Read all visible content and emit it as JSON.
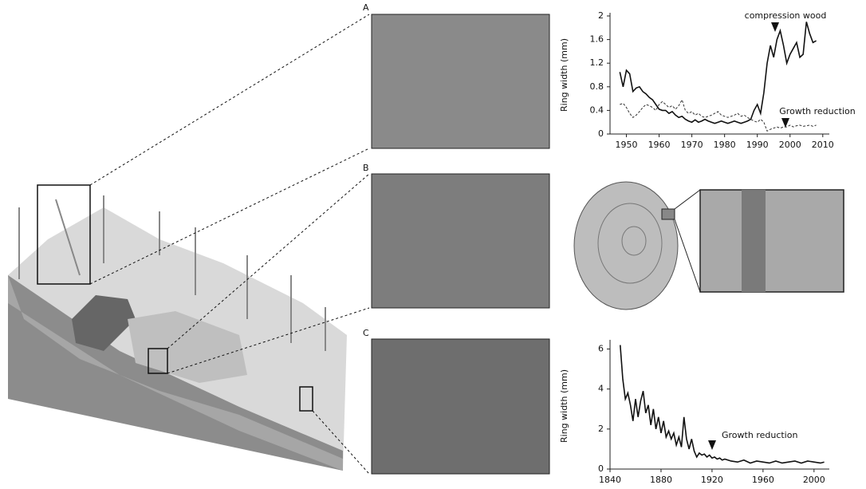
{
  "panels": [
    "A",
    "B",
    "C"
  ],
  "chart_data": [
    {
      "type": "line",
      "y_label": "Ring width (mm)",
      "x": [
        1948,
        1949,
        1950,
        1951,
        1952,
        1953,
        1954,
        1955,
        1956,
        1957,
        1958,
        1959,
        1960,
        1961,
        1962,
        1963,
        1964,
        1965,
        1966,
        1967,
        1968,
        1969,
        1970,
        1971,
        1972,
        1973,
        1974,
        1975,
        1976,
        1977,
        1978,
        1979,
        1980,
        1981,
        1982,
        1983,
        1984,
        1985,
        1986,
        1987,
        1988,
        1989,
        1990,
        1991,
        1992,
        1993,
        1994,
        1995,
        1996,
        1997,
        1998,
        1999,
        2000,
        2001,
        2002,
        2003,
        2004,
        2005,
        2006,
        2007,
        2008
      ],
      "series": [
        {
          "color": "#111111",
          "dash": "solid",
          "values": [
            1.05,
            0.8,
            1.08,
            1.02,
            0.72,
            0.78,
            0.8,
            0.72,
            0.68,
            0.62,
            0.58,
            0.5,
            0.42,
            0.4,
            0.4,
            0.35,
            0.38,
            0.32,
            0.28,
            0.3,
            0.25,
            0.22,
            0.2,
            0.24,
            0.2,
            0.22,
            0.25,
            0.22,
            0.2,
            0.18,
            0.2,
            0.22,
            0.2,
            0.18,
            0.2,
            0.22,
            0.2,
            0.18,
            0.2,
            0.22,
            0.25,
            0.4,
            0.5,
            0.35,
            0.7,
            1.2,
            1.5,
            1.3,
            1.6,
            1.75,
            1.5,
            1.2,
            1.35,
            1.45,
            1.55,
            1.3,
            1.35,
            1.9,
            1.7,
            1.55,
            1.58
          ]
        },
        {
          "color": "#333333",
          "dash": "dashed",
          "values": [
            0.5,
            0.52,
            0.45,
            0.35,
            0.28,
            0.32,
            0.38,
            0.45,
            0.5,
            0.48,
            0.45,
            0.4,
            0.5,
            0.55,
            0.5,
            0.45,
            0.48,
            0.42,
            0.48,
            0.58,
            0.4,
            0.35,
            0.38,
            0.32,
            0.35,
            0.3,
            0.28,
            0.3,
            0.32,
            0.35,
            0.38,
            0.32,
            0.3,
            0.28,
            0.3,
            0.32,
            0.35,
            0.3,
            0.32,
            0.28,
            0.25,
            0.22,
            0.2,
            0.25,
            0.2,
            0.05,
            0.08,
            0.1,
            0.12,
            0.1,
            0.12,
            0.12,
            0.15,
            0.12,
            0.14,
            0.15,
            0.13,
            0.14,
            0.15,
            0.13,
            0.15
          ]
        }
      ],
      "xlim": [
        1945,
        2012
      ],
      "xticks": [
        1950,
        1960,
        1970,
        1980,
        1990,
        2000,
        2010
      ],
      "ylim": [
        0,
        2
      ],
      "yticks": [
        0,
        0.4,
        0.8,
        1.2,
        1.6,
        2
      ],
      "grid": false,
      "annotations": [
        "compression wood",
        "Growth reduction"
      ]
    },
    {
      "type": "line",
      "y_label": "Ring width (mm)",
      "x": [
        1848,
        1850,
        1852,
        1854,
        1856,
        1858,
        1860,
        1862,
        1864,
        1866,
        1868,
        1870,
        1872,
        1874,
        1876,
        1878,
        1880,
        1882,
        1884,
        1886,
        1888,
        1890,
        1892,
        1894,
        1896,
        1898,
        1900,
        1902,
        1904,
        1906,
        1908,
        1910,
        1912,
        1914,
        1916,
        1918,
        1920,
        1922,
        1924,
        1926,
        1928,
        1930,
        1935,
        1940,
        1945,
        1950,
        1955,
        1960,
        1965,
        1970,
        1975,
        1980,
        1985,
        1990,
        1995,
        2000,
        2005,
        2008
      ],
      "series": [
        {
          "color": "#111111",
          "dash": "solid",
          "values": [
            6.2,
            4.5,
            3.5,
            3.8,
            3.2,
            2.4,
            3.5,
            2.6,
            3.4,
            3.9,
            2.8,
            3.2,
            2.2,
            3.0,
            2.0,
            2.6,
            1.8,
            2.4,
            1.6,
            1.9,
            1.5,
            1.8,
            1.2,
            1.6,
            1.1,
            2.6,
            1.5,
            1.0,
            1.5,
            0.9,
            0.6,
            0.8,
            0.7,
            0.75,
            0.6,
            0.7,
            0.55,
            0.6,
            0.5,
            0.55,
            0.45,
            0.5,
            0.4,
            0.35,
            0.45,
            0.3,
            0.4,
            0.35,
            0.3,
            0.4,
            0.3,
            0.35,
            0.4,
            0.3,
            0.4,
            0.35,
            0.3,
            0.35
          ]
        }
      ],
      "xlim": [
        1840,
        2012
      ],
      "xticks": [
        1840,
        1880,
        1920,
        1960,
        2000
      ],
      "ylim": [
        0,
        6.3
      ],
      "yticks": [
        0,
        2,
        4,
        6
      ],
      "grid": false,
      "annotations": [
        "Growth reduction"
      ]
    }
  ]
}
